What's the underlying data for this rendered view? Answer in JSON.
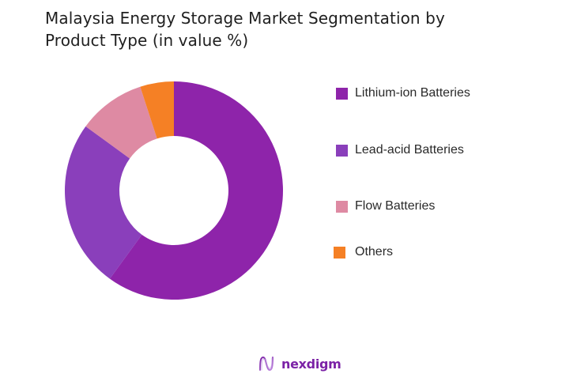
{
  "title": {
    "line1": "Malaysia Energy Storage Market Segmentation by",
    "line2": "Product Type (in value %)"
  },
  "legend": {
    "items": [
      {
        "label": "Lithium-ion Batteries",
        "color": "#8E24AA"
      },
      {
        "label": "Lead-acid Batteries",
        "color": "#8A3FBB"
      },
      {
        "label": "Flow Batteries",
        "color": "#DE8AA3"
      },
      {
        "label": "Others",
        "color": "#F58025"
      }
    ]
  },
  "logo": {
    "text": "nexdigm",
    "icon": "nexdigm-wave-icon",
    "color": "#7B22A6"
  },
  "chart_data": {
    "type": "pie",
    "variant": "donut",
    "title": "Malaysia Energy Storage Market Segmentation by Product Type (in value %)",
    "categories": [
      "Lithium-ion Batteries",
      "Lead-acid Batteries",
      "Flow Batteries",
      "Others"
    ],
    "values": [
      60,
      25,
      10,
      5
    ],
    "unit": "%",
    "colors": [
      "#8E24AA",
      "#8A3FBB",
      "#DE8AA3",
      "#F58025"
    ],
    "start_angle_deg": 0,
    "direction": "clockwise",
    "legend_position": "right",
    "data_labels": false
  }
}
